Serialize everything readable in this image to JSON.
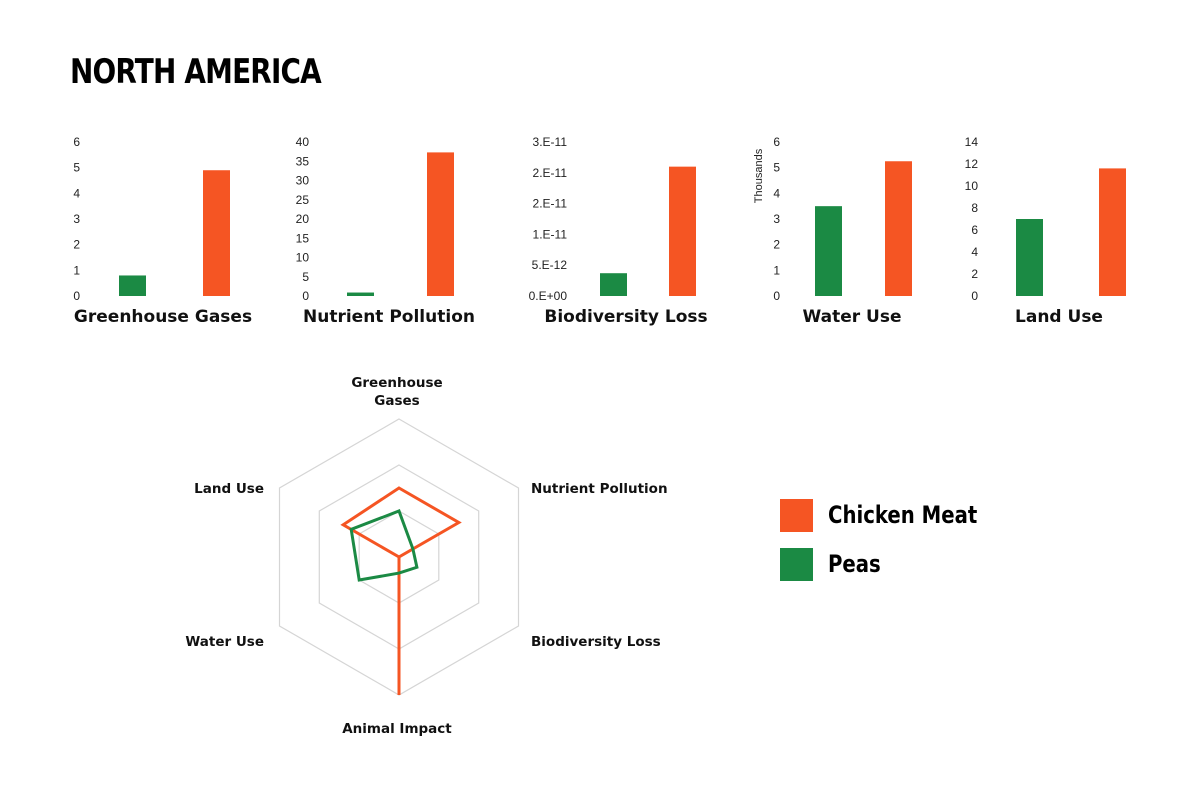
{
  "title": "NORTH AMERICA",
  "colors": {
    "chicken": "#f55523",
    "peas": "#1b8a44",
    "grid": "#d5d5d5"
  },
  "legend": [
    {
      "label": "Chicken Meat",
      "color": "#f55523"
    },
    {
      "label": "Peas",
      "color": "#1b8a44"
    }
  ],
  "chart_data": [
    {
      "type": "bar",
      "title": "Greenhouse Gases",
      "categories": [
        "Peas",
        "Chicken Meat"
      ],
      "values": [
        0.8,
        4.9
      ],
      "ylim": [
        0,
        6
      ],
      "ticks": [
        "0",
        "1",
        "2",
        "3",
        "4",
        "5",
        "6"
      ],
      "ylabel": ""
    },
    {
      "type": "bar",
      "title": "Nutrient Pollution",
      "categories": [
        "Peas",
        "Chicken Meat"
      ],
      "values": [
        0.9,
        37.3
      ],
      "ylim": [
        0,
        40
      ],
      "ticks": [
        "0",
        "5",
        "10",
        "15",
        "20",
        "25",
        "30",
        "35",
        "40"
      ],
      "ylabel": ""
    },
    {
      "type": "bar",
      "title": "Biodiversity Loss",
      "categories": [
        "Peas",
        "Chicken Meat"
      ],
      "values": [
        3.7e-12,
        2.1e-11
      ],
      "ylim": [
        0,
        2.5e-11
      ],
      "ticks": [
        "0.E+00",
        "5.E-12",
        "1.E-11",
        "2.E-11",
        "2.E-11",
        "3.E-11"
      ],
      "ylabel": ""
    },
    {
      "type": "bar",
      "title": "Water Use",
      "categories": [
        "Peas",
        "Chicken Meat"
      ],
      "values": [
        3.5,
        5.25
      ],
      "ylim": [
        0,
        6
      ],
      "ticks": [
        "0",
        "1",
        "2",
        "3",
        "4",
        "5",
        "6"
      ],
      "ylabel": "Thousands"
    },
    {
      "type": "bar",
      "title": "Land Use",
      "categories": [
        "Peas",
        "Chicken Meat"
      ],
      "values": [
        7.0,
        11.6
      ],
      "ylim": [
        0,
        14
      ],
      "ticks": [
        "0",
        "2",
        "4",
        "6",
        "8",
        "10",
        "12",
        "14"
      ],
      "ylabel": ""
    },
    {
      "type": "radar",
      "axes": [
        "Greenhouse Gases",
        "Nutrient Pollution",
        "Biodiversity Loss",
        "Animal Impact",
        "Water Use",
        "Land Use"
      ],
      "rmax": 3,
      "series": [
        {
          "name": "Chicken Meat",
          "values": [
            1.5,
            1.5,
            0.0,
            3.0,
            0.0,
            1.4
          ]
        },
        {
          "name": "Peas",
          "values": [
            1.0,
            0.35,
            0.45,
            0.35,
            1.0,
            1.2
          ]
        }
      ]
    }
  ]
}
